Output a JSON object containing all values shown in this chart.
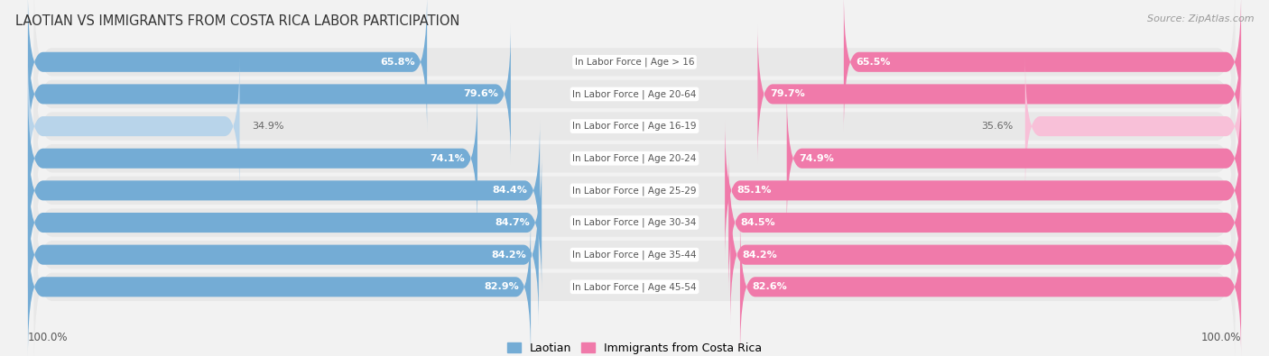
{
  "title": "LAOTIAN VS IMMIGRANTS FROM COSTA RICA LABOR PARTICIPATION",
  "source": "Source: ZipAtlas.com",
  "categories": [
    "In Labor Force | Age > 16",
    "In Labor Force | Age 20-64",
    "In Labor Force | Age 16-19",
    "In Labor Force | Age 20-24",
    "In Labor Force | Age 25-29",
    "In Labor Force | Age 30-34",
    "In Labor Force | Age 35-44",
    "In Labor Force | Age 45-54"
  ],
  "laotian_values": [
    65.8,
    79.6,
    34.9,
    74.1,
    84.4,
    84.7,
    84.2,
    82.9
  ],
  "costarica_values": [
    65.5,
    79.7,
    35.6,
    74.9,
    85.1,
    84.5,
    84.2,
    82.6
  ],
  "laotian_color": "#74acd5",
  "laotian_color_light": "#b8d4ea",
  "costarica_color": "#f07aaa",
  "costarica_color_light": "#f8c0d8",
  "row_bg_color": "#e8e8e8",
  "outer_bg_color": "#f2f2f2",
  "label_white": "#ffffff",
  "label_dark": "#666666",
  "center_label_color": "#555555",
  "legend_laotian": "Laotian",
  "legend_costarica": "Immigrants from Costa Rica",
  "bottom_left_label": "100.0%",
  "bottom_right_label": "100.0%",
  "threshold": 50
}
